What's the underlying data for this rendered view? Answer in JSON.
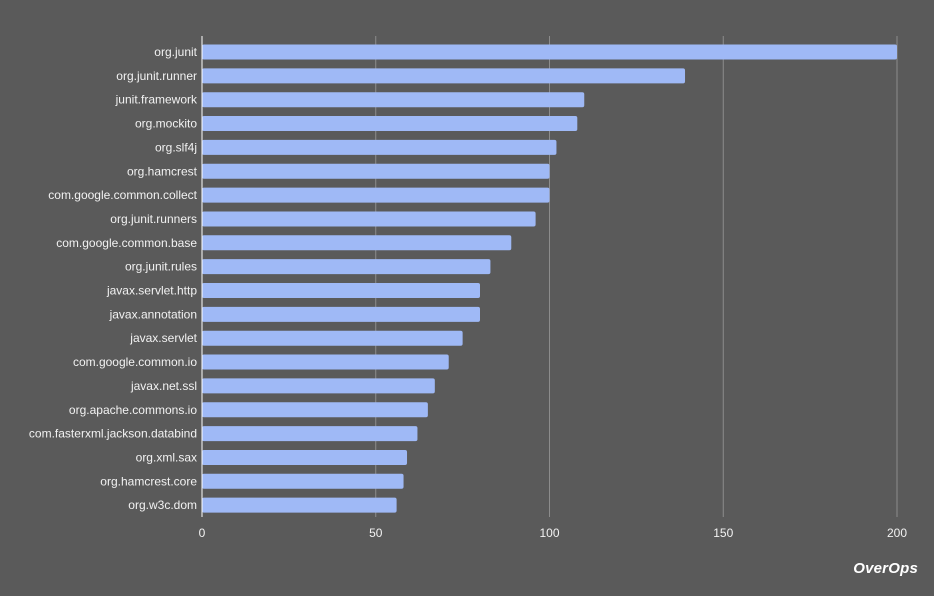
{
  "chart_data": {
    "type": "bar",
    "orientation": "horizontal",
    "categories": [
      "org.junit",
      "org.junit.runner",
      "junit.framework",
      "org.mockito",
      "org.slf4j",
      "org.hamcrest",
      "com.google.common.collect",
      "org.junit.runners",
      "com.google.common.base",
      "org.junit.rules",
      "javax.servlet.http",
      "javax.annotation",
      "javax.servlet",
      "com.google.common.io",
      "javax.net.ssl",
      "org.apache.commons.io",
      "com.fasterxml.jackson.databind",
      "org.xml.sax",
      "org.hamcrest.core",
      "org.w3c.dom"
    ],
    "values": [
      200,
      139,
      110,
      108,
      102,
      100,
      100,
      96,
      89,
      83,
      80,
      80,
      75,
      71,
      67,
      65,
      62,
      59,
      58,
      56
    ],
    "xlim": [
      0,
      200
    ],
    "xticks": [
      "0",
      "50",
      "100",
      "150",
      "200"
    ],
    "grid": true,
    "legend": "none",
    "bar_color": "#9fb9f6",
    "background_color": "#5a5a5a",
    "gridline_color": "#8c8c8c",
    "axis_color": "#ffffff"
  },
  "brand": {
    "text": "OverOps"
  }
}
